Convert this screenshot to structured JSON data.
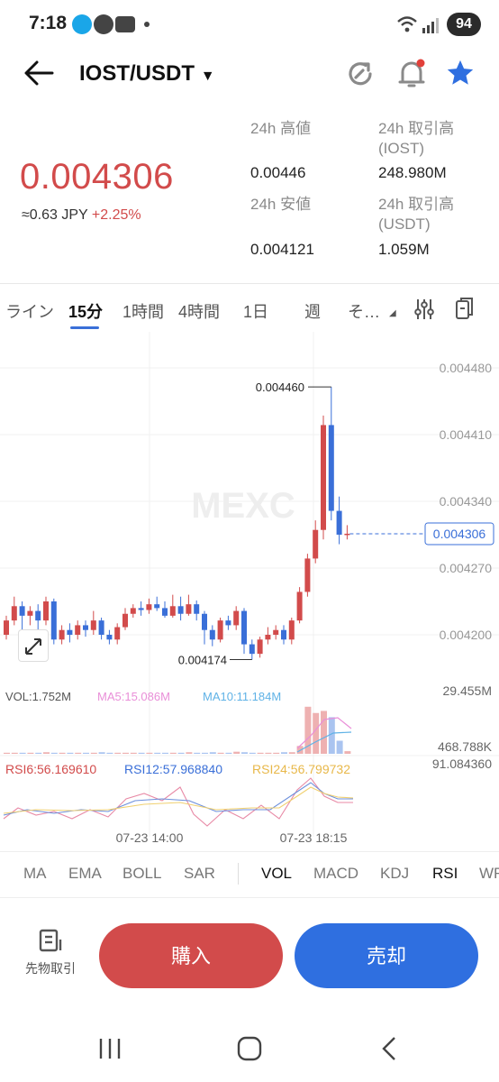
{
  "status_bar": {
    "time": "7:18",
    "battery": "94"
  },
  "header": {
    "pair": "IOST/USDT"
  },
  "ticker": {
    "last_price": "0.004306",
    "approx": "≈0.63 JPY",
    "change": "+2.25%",
    "high_label": "24h 高値",
    "high_value": "0.00446",
    "low_label": "24h 安値",
    "low_value": "0.004121",
    "vol_base_label": "24h 取引高\n(IOST)",
    "vol_base_value": "248.980M",
    "vol_quote_label": "24h 取引高\n(USDT)",
    "vol_quote_value": "1.059M"
  },
  "time_tabs": [
    "ライン",
    "15分",
    "1時間",
    "4時間",
    "1日",
    "週",
    "そ…"
  ],
  "chart": {
    "watermark": "MEXC",
    "price_ticks": [
      "0.004480",
      "0.004410",
      "0.004340",
      "0.004270",
      "0.004200"
    ],
    "current_price_tag": "0.004306",
    "max_label": "0.004460",
    "min_label": "0.004174",
    "vol_legend": {
      "vol": "VOL:1.752M",
      "ma5": "MA5:15.086M",
      "ma10": "MA10:11.184M"
    },
    "vol_ticks": [
      "29.455M",
      "468.788K"
    ],
    "rsi_legend": {
      "rsi6": "RSI6:56.169610",
      "rsi12": "RSI12:57.968840",
      "rsi24": "RSI24:56.799732"
    },
    "rsi_top": "91.084360",
    "x_ticks": [
      "07-23 14:00",
      "07-23 18:15"
    ]
  },
  "indicators": [
    "MA",
    "EMA",
    "BOLL",
    "SAR",
    "VOL",
    "MACD",
    "KDJ",
    "RSI",
    "WR"
  ],
  "bottom": {
    "futures_label": "先物取引",
    "buy_label": "購入",
    "sell_label": "売却"
  },
  "colors": {
    "up": "#d24b4b",
    "down": "#3a6fd8",
    "accent": "#3a6fd8"
  },
  "chart_data": {
    "type": "candlestick",
    "last": 0.004306,
    "high_marker": 0.00446,
    "low_marker": 0.004174
  }
}
